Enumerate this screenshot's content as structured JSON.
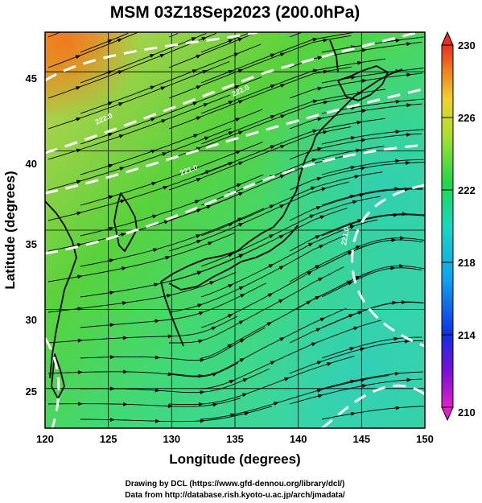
{
  "title": "MSM 03Z18Sep2023 (200.0hPa)",
  "xlabel": "Longitude (degrees)",
  "ylabel": "Latitude  (degrees)",
  "credits": {
    "line1": "Drawing by DCL (https://www.gfd-dennou.org/library/dcl/)",
    "line2": "Data from http://database.rish.kyoto-u.ac.jp/arch/jmadata/"
  },
  "x_ticks": [
    "120",
    "125",
    "130",
    "135",
    "140",
    "145",
    "150"
  ],
  "y_ticks": [
    "25",
    "30",
    "35",
    "40",
    "45"
  ],
  "colorbar": {
    "labels": [
      "230",
      "226",
      "222",
      "218",
      "214",
      "210"
    ],
    "min": 210,
    "max": 230
  },
  "contour_labels": [
    "222.0",
    "222.0",
    "221.0",
    "221.0"
  ],
  "chart_data": {
    "type": "heatmap",
    "title": "MSM 03Z18Sep2023 (200.0hPa)",
    "xlabel": "Longitude (degrees)",
    "ylabel": "Latitude  (degrees)",
    "xlim": [
      120,
      150
    ],
    "ylim": [
      22.5,
      47.5
    ],
    "x_ticks": [
      120,
      125,
      130,
      135,
      140,
      145,
      150
    ],
    "y_ticks": [
      25,
      30,
      35,
      40,
      45
    ],
    "colorbar_range": [
      210,
      230
    ],
    "colorbar_ticks": [
      210,
      214,
      218,
      222,
      226,
      230
    ],
    "grid": true,
    "overlay": "streamlines (black) and white dashed temperature contours"
  }
}
